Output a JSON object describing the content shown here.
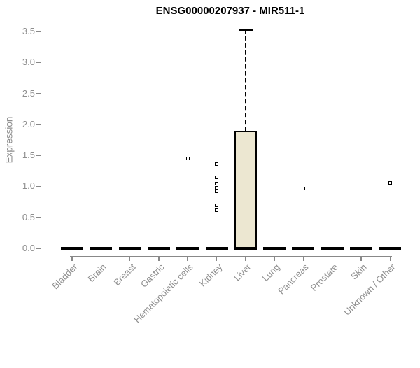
{
  "chart_data": {
    "type": "boxplot",
    "title": "ENSG00000207937 - MIR511-1",
    "xlabel": "",
    "ylabel": "Expression",
    "ylim": [
      0,
      3.5
    ],
    "ytick_step": 0.5,
    "ytick_labels": [
      "0.0",
      "0.5",
      "1.0",
      "1.5",
      "2.0",
      "2.5",
      "3.0",
      "3.5"
    ],
    "grid": false,
    "legend": "none",
    "categories": [
      "Bladder",
      "Brain",
      "Breast",
      "Gastric",
      "Hematopoietic cells",
      "Kidney",
      "Liver",
      "Lung",
      "Pancreas",
      "Prostate",
      "Skin",
      "Unknown / Other"
    ],
    "boxes": [
      {
        "name": "Bladder",
        "whisker_low": 0,
        "q1": 0,
        "median": 0,
        "q3": 0,
        "whisker_high": 0,
        "outliers": []
      },
      {
        "name": "Brain",
        "whisker_low": 0,
        "q1": 0,
        "median": 0,
        "q3": 0,
        "whisker_high": 0,
        "outliers": []
      },
      {
        "name": "Breast",
        "whisker_low": 0,
        "q1": 0,
        "median": 0,
        "q3": 0,
        "whisker_high": 0,
        "outliers": []
      },
      {
        "name": "Gastric",
        "whisker_low": 0,
        "q1": 0,
        "median": 0,
        "q3": 0,
        "whisker_high": 0,
        "outliers": []
      },
      {
        "name": "Hematopoietic cells",
        "whisker_low": 0,
        "q1": 0,
        "median": 0,
        "q3": 0,
        "whisker_high": 0,
        "outliers": [
          1.45
        ]
      },
      {
        "name": "Kidney",
        "whisker_low": 0,
        "q1": 0,
        "median": 0,
        "q3": 0,
        "whisker_high": 0,
        "outliers": [
          1.36,
          1.15,
          1.05,
          0.98,
          0.92,
          0.7,
          0.62
        ]
      },
      {
        "name": "Liver",
        "whisker_low": 0,
        "q1": 0,
        "median": 0,
        "q3": 1.9,
        "whisker_high": 3.53,
        "outliers": []
      },
      {
        "name": "Lung",
        "whisker_low": 0,
        "q1": 0,
        "median": 0,
        "q3": 0,
        "whisker_high": 0,
        "outliers": []
      },
      {
        "name": "Pancreas",
        "whisker_low": 0,
        "q1": 0,
        "median": 0,
        "q3": 0,
        "whisker_high": 0,
        "outliers": [
          0.97
        ]
      },
      {
        "name": "Prostate",
        "whisker_low": 0,
        "q1": 0,
        "median": 0,
        "q3": 0,
        "whisker_high": 0,
        "outliers": []
      },
      {
        "name": "Skin",
        "whisker_low": 0,
        "q1": 0,
        "median": 0,
        "q3": 0,
        "whisker_high": 0,
        "outliers": []
      },
      {
        "name": "Unknown / Other",
        "whisker_low": 0,
        "q1": 0,
        "median": 0,
        "q3": 0,
        "whisker_high": 0,
        "outliers": [
          1.06
        ]
      }
    ],
    "colors": {
      "title": "#000000",
      "axis": "#888888",
      "tick_text": "#8e8e8e",
      "box_fill": "#ece7d1",
      "box_border": "#000000",
      "outlier": "#000000",
      "background": "#ffffff"
    }
  }
}
